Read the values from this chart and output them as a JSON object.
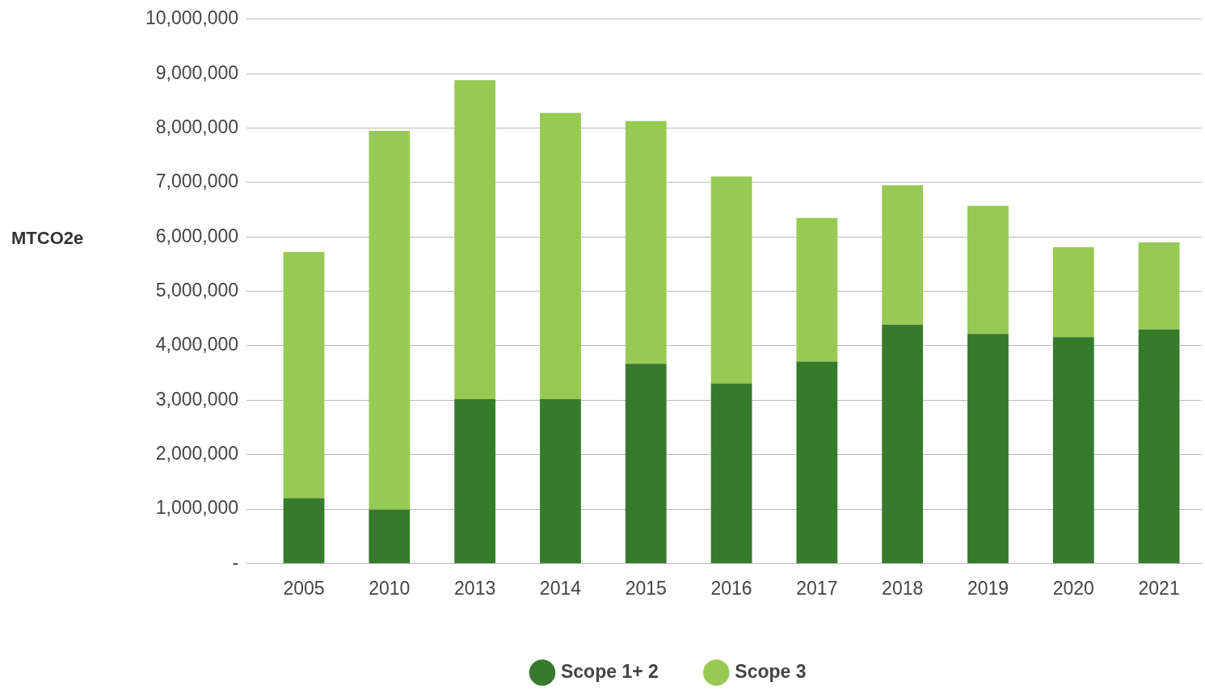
{
  "chart_data": {
    "type": "bar",
    "stacked": true,
    "ylabel": "MTCO2e",
    "categories": [
      "2005",
      "2010",
      "2013",
      "2014",
      "2015",
      "2016",
      "2017",
      "2018",
      "2019",
      "2020",
      "2021"
    ],
    "series": [
      {
        "name": "Scope 1+ 2",
        "color": "#367a2c",
        "values": [
          1200000,
          990000,
          3020000,
          3020000,
          3670000,
          3310000,
          3710000,
          4390000,
          4220000,
          4160000,
          4300000
        ]
      },
      {
        "name": "Scope 3",
        "color": "#98c954",
        "values": [
          4520000,
          6960000,
          5860000,
          5260000,
          4460000,
          3800000,
          2640000,
          2560000,
          2350000,
          1650000,
          1600000
        ]
      }
    ],
    "ylim": [
      0,
      10000000
    ],
    "yticks": [
      {
        "value": 0,
        "label": "-"
      },
      {
        "value": 1000000,
        "label": "1,000,000"
      },
      {
        "value": 2000000,
        "label": "2,000,000"
      },
      {
        "value": 3000000,
        "label": "3,000,000"
      },
      {
        "value": 4000000,
        "label": "4,000,000"
      },
      {
        "value": 5000000,
        "label": "5,000,000"
      },
      {
        "value": 6000000,
        "label": "6,000,000"
      },
      {
        "value": 7000000,
        "label": "7,000,000"
      },
      {
        "value": 8000000,
        "label": "8,000,000"
      },
      {
        "value": 9000000,
        "label": "9,000,000"
      },
      {
        "value": 10000000,
        "label": "10,000,000"
      }
    ],
    "grid": "y",
    "legend": "bottom",
    "marker": "circle"
  }
}
